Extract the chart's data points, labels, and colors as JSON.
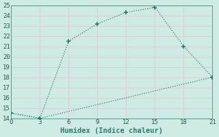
{
  "line1_x": [
    0,
    3,
    6,
    9,
    12,
    15,
    18,
    21
  ],
  "line1_y": [
    14.5,
    14.0,
    21.5,
    23.2,
    24.3,
    24.8,
    21.0,
    18.0
  ],
  "line2_x": [
    0,
    3,
    21
  ],
  "line2_y": [
    14.5,
    14.0,
    18.0
  ],
  "line_color": "#2a7d6e",
  "bg_color": "#ceeae4",
  "grid_color": "#e8c8c8",
  "xlabel": "Humidex (Indice chaleur)",
  "xlim": [
    0,
    21
  ],
  "ylim": [
    14,
    25
  ],
  "xticks": [
    0,
    3,
    6,
    9,
    12,
    15,
    18,
    21
  ],
  "yticks": [
    14,
    15,
    16,
    17,
    18,
    19,
    20,
    21,
    22,
    23,
    24,
    25
  ],
  "xlabel_fontsize": 7.5,
  "tick_fontsize": 6.5
}
